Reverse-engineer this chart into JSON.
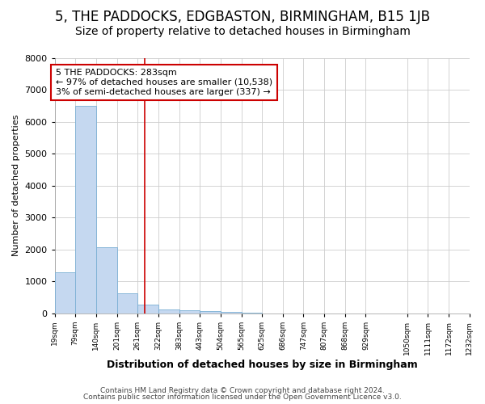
{
  "title": "5, THE PADDOCKS, EDGBASTON, BIRMINGHAM, B15 1JB",
  "subtitle": "Size of property relative to detached houses in Birmingham",
  "xlabel": "Distribution of detached houses by size in Birmingham",
  "ylabel": "Number of detached properties",
  "bar_color": "#c5d8f0",
  "bar_edge_color": "#7aafd4",
  "bin_edges": [
    19,
    79,
    140,
    201,
    261,
    322,
    383,
    443,
    504,
    565,
    625,
    686,
    747,
    807,
    868,
    929,
    1050,
    1111,
    1172,
    1232
  ],
  "bar_heights": [
    1280,
    6500,
    2080,
    630,
    280,
    130,
    95,
    60,
    40,
    15,
    5,
    2,
    0,
    0,
    0,
    0,
    0,
    0,
    0
  ],
  "property_size": 283,
  "red_line_color": "#cc0000",
  "annotation_text": "5 THE PADDOCKS: 283sqm\n← 97% of detached houses are smaller (10,538)\n3% of semi-detached houses are larger (337) →",
  "annotation_box_color": "#ffffff",
  "annotation_border_color": "#cc0000",
  "ylim": [
    0,
    8000
  ],
  "yticks": [
    0,
    1000,
    2000,
    3000,
    4000,
    5000,
    6000,
    7000,
    8000
  ],
  "footer_line1": "Contains HM Land Registry data © Crown copyright and database right 2024.",
  "footer_line2": "Contains public sector information licensed under the Open Government Licence v3.0.",
  "background_color": "#ffffff",
  "grid_color": "#cccccc",
  "title_fontsize": 12,
  "subtitle_fontsize": 10
}
